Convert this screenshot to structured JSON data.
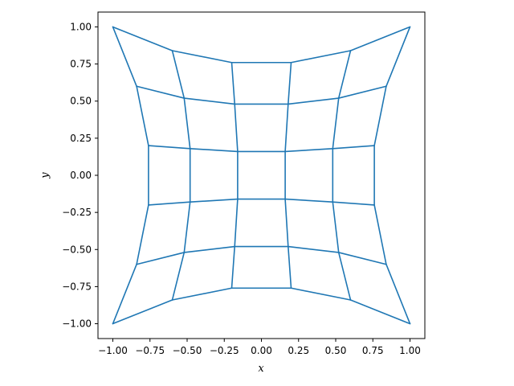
{
  "chart_data": {
    "type": "line",
    "title": "",
    "xlabel": "x",
    "ylabel": "y",
    "xlim": [
      -1.1,
      1.1
    ],
    "ylim": [
      -1.1,
      1.1
    ],
    "grid": false,
    "line_color": "#1f77b4",
    "x_ticks": [
      -1.0,
      -0.75,
      -0.5,
      -0.25,
      0.0,
      0.25,
      0.5,
      0.75,
      1.0
    ],
    "y_ticks": [
      -1.0,
      -0.75,
      -0.5,
      -0.25,
      0.0,
      0.25,
      0.5,
      0.75,
      1.0
    ],
    "x_tick_labels": [
      "−1.00",
      "−0.75",
      "−0.50",
      "−0.25",
      "0.00",
      "0.25",
      "0.50",
      "0.75",
      "1.00"
    ],
    "y_tick_labels": [
      "−1.00",
      "−0.75",
      "−0.50",
      "−0.25",
      "0.00",
      "0.25",
      "0.50",
      "0.75",
      "1.00"
    ],
    "grid_points": [
      [
        [
          -1.0,
          1.0
        ],
        [
          -0.6,
          0.84
        ],
        [
          -0.2,
          0.76
        ],
        [
          0.2,
          0.76
        ],
        [
          0.6,
          0.84
        ],
        [
          1.0,
          1.0
        ]
      ],
      [
        [
          -0.84,
          0.6
        ],
        [
          -0.52,
          0.52
        ],
        [
          -0.18,
          0.48
        ],
        [
          0.18,
          0.48
        ],
        [
          0.52,
          0.52
        ],
        [
          0.84,
          0.6
        ]
      ],
      [
        [
          -0.76,
          0.2
        ],
        [
          -0.48,
          0.18
        ],
        [
          -0.16,
          0.16
        ],
        [
          0.16,
          0.16
        ],
        [
          0.48,
          0.18
        ],
        [
          0.76,
          0.2
        ]
      ],
      [
        [
          -0.76,
          -0.2
        ],
        [
          -0.48,
          -0.18
        ],
        [
          -0.16,
          -0.16
        ],
        [
          0.16,
          -0.16
        ],
        [
          0.48,
          -0.18
        ],
        [
          0.76,
          -0.2
        ]
      ],
      [
        [
          -0.84,
          -0.6
        ],
        [
          -0.52,
          -0.52
        ],
        [
          -0.18,
          -0.48
        ],
        [
          0.18,
          -0.48
        ],
        [
          0.52,
          -0.52
        ],
        [
          0.84,
          -0.6
        ]
      ],
      [
        [
          -1.0,
          -1.0
        ],
        [
          -0.6,
          -0.84
        ],
        [
          -0.2,
          -0.76
        ],
        [
          0.2,
          -0.76
        ],
        [
          0.6,
          -0.84
        ],
        [
          1.0,
          -1.0
        ]
      ]
    ]
  }
}
